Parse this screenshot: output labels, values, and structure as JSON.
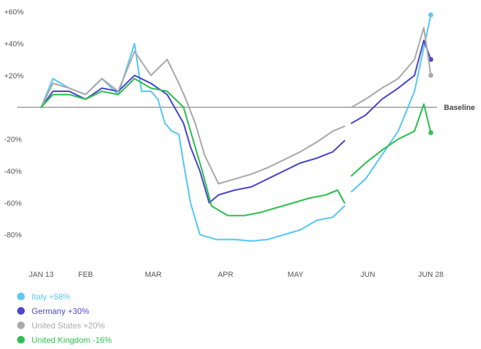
{
  "chart_data": {
    "type": "line",
    "title": "",
    "xlabel": "",
    "ylabel": "",
    "ylim": [
      -100,
      60
    ],
    "baseline_label": "Baseline",
    "y_ticks": [
      {
        "value": 60,
        "label": "+60%"
      },
      {
        "value": 40,
        "label": "+40%"
      },
      {
        "value": 20,
        "label": "+20%"
      },
      {
        "value": -20,
        "label": "-20%"
      },
      {
        "value": -40,
        "label": "-40%"
      },
      {
        "value": -60,
        "label": "-60%"
      },
      {
        "value": -80,
        "label": "-80%"
      }
    ],
    "x_ticks": [
      {
        "date": "2020-01-13",
        "label": "JAN 13"
      },
      {
        "date": "2020-02-01",
        "label": "FEB"
      },
      {
        "date": "2020-03-01",
        "label": "MAR"
      },
      {
        "date": "2020-04-01",
        "label": "APR"
      },
      {
        "date": "2020-05-01",
        "label": "MAY"
      },
      {
        "date": "2020-06-01",
        "label": "JUN"
      },
      {
        "date": "2020-06-28",
        "label": "JUN 28"
      }
    ],
    "x_range": [
      "2020-01-13",
      "2020-06-28"
    ],
    "grid": false,
    "legend_position": "bottom-left",
    "series": [
      {
        "name": "Italy +58%",
        "color": "#5ac8f5",
        "points": [
          [
            "2020-01-13",
            0
          ],
          [
            "2020-01-18",
            18
          ],
          [
            "2020-01-25",
            12
          ],
          [
            "2020-02-01",
            8
          ],
          [
            "2020-02-08",
            18
          ],
          [
            "2020-02-15",
            8
          ],
          [
            "2020-02-22",
            40
          ],
          [
            "2020-02-25",
            10
          ],
          [
            "2020-02-29",
            10
          ],
          [
            "2020-03-03",
            5
          ],
          [
            "2020-03-06",
            -10
          ],
          [
            "2020-03-09",
            -15
          ],
          [
            "2020-03-12",
            -17
          ],
          [
            "2020-03-14",
            -35
          ],
          [
            "2020-03-17",
            -60
          ],
          [
            "2020-03-21",
            -80
          ],
          [
            "2020-03-28",
            -83
          ],
          [
            "2020-04-05",
            -83
          ],
          [
            "2020-04-12",
            -84
          ],
          [
            "2020-04-19",
            -83
          ],
          [
            "2020-04-26",
            -80
          ],
          [
            "2020-05-03",
            -77
          ],
          [
            "2020-05-10",
            -71
          ],
          [
            "2020-05-17",
            -69
          ],
          [
            "2020-05-22",
            -62
          ],
          [
            "2020-05-23",
            null
          ],
          [
            "2020-05-25",
            -53
          ],
          [
            "2020-05-31",
            -45
          ],
          [
            "2020-06-07",
            -30
          ],
          [
            "2020-06-14",
            -15
          ],
          [
            "2020-06-21",
            10
          ],
          [
            "2020-06-28",
            58
          ]
        ],
        "end_value": 58
      },
      {
        "name": "Germany +30%",
        "color": "#4b48cc",
        "points": [
          [
            "2020-01-13",
            0
          ],
          [
            "2020-01-18",
            10
          ],
          [
            "2020-01-25",
            10
          ],
          [
            "2020-02-01",
            5
          ],
          [
            "2020-02-08",
            12
          ],
          [
            "2020-02-15",
            10
          ],
          [
            "2020-02-22",
            20
          ],
          [
            "2020-02-29",
            15
          ],
          [
            "2020-03-07",
            8
          ],
          [
            "2020-03-14",
            -10
          ],
          [
            "2020-03-17",
            -25
          ],
          [
            "2020-03-21",
            -40
          ],
          [
            "2020-03-25",
            -60
          ],
          [
            "2020-03-29",
            -55
          ],
          [
            "2020-04-05",
            -52
          ],
          [
            "2020-04-12",
            -50
          ],
          [
            "2020-04-19",
            -45
          ],
          [
            "2020-04-26",
            -40
          ],
          [
            "2020-05-03",
            -35
          ],
          [
            "2020-05-10",
            -32
          ],
          [
            "2020-05-17",
            -28
          ],
          [
            "2020-05-22",
            -21
          ],
          [
            "2020-05-23",
            null
          ],
          [
            "2020-05-25",
            -10
          ],
          [
            "2020-05-31",
            -5
          ],
          [
            "2020-06-07",
            5
          ],
          [
            "2020-06-14",
            12
          ],
          [
            "2020-06-21",
            20
          ],
          [
            "2020-06-25",
            42
          ],
          [
            "2020-06-28",
            30
          ]
        ],
        "end_value": 30
      },
      {
        "name": "United States +20%",
        "color": "#aaaaaa",
        "points": [
          [
            "2020-01-13",
            0
          ],
          [
            "2020-01-18",
            15
          ],
          [
            "2020-01-25",
            12
          ],
          [
            "2020-02-01",
            8
          ],
          [
            "2020-02-08",
            18
          ],
          [
            "2020-02-15",
            10
          ],
          [
            "2020-02-22",
            35
          ],
          [
            "2020-02-29",
            20
          ],
          [
            "2020-03-07",
            30
          ],
          [
            "2020-03-12",
            15
          ],
          [
            "2020-03-15",
            5
          ],
          [
            "2020-03-19",
            -10
          ],
          [
            "2020-03-23",
            -30
          ],
          [
            "2020-03-29",
            -48
          ],
          [
            "2020-04-05",
            -45
          ],
          [
            "2020-04-12",
            -42
          ],
          [
            "2020-04-19",
            -38
          ],
          [
            "2020-04-26",
            -33
          ],
          [
            "2020-05-03",
            -28
          ],
          [
            "2020-05-10",
            -22
          ],
          [
            "2020-05-17",
            -15
          ],
          [
            "2020-05-22",
            -12
          ],
          [
            "2020-05-23",
            null
          ],
          [
            "2020-05-25",
            0
          ],
          [
            "2020-05-31",
            5
          ],
          [
            "2020-06-07",
            12
          ],
          [
            "2020-06-14",
            18
          ],
          [
            "2020-06-21",
            30
          ],
          [
            "2020-06-25",
            50
          ],
          [
            "2020-06-28",
            20
          ]
        ],
        "end_value": 20
      },
      {
        "name": "United Kingdom -16%",
        "color": "#2ec04f",
        "points": [
          [
            "2020-01-13",
            0
          ],
          [
            "2020-01-18",
            8
          ],
          [
            "2020-01-25",
            8
          ],
          [
            "2020-02-01",
            5
          ],
          [
            "2020-02-08",
            10
          ],
          [
            "2020-02-15",
            8
          ],
          [
            "2020-02-22",
            18
          ],
          [
            "2020-02-29",
            12
          ],
          [
            "2020-03-07",
            10
          ],
          [
            "2020-03-14",
            0
          ],
          [
            "2020-03-18",
            -20
          ],
          [
            "2020-03-22",
            -40
          ],
          [
            "2020-03-26",
            -62
          ],
          [
            "2020-04-02",
            -68
          ],
          [
            "2020-04-09",
            -68
          ],
          [
            "2020-04-16",
            -66
          ],
          [
            "2020-04-23",
            -63
          ],
          [
            "2020-04-30",
            -60
          ],
          [
            "2020-05-07",
            -57
          ],
          [
            "2020-05-14",
            -55
          ],
          [
            "2020-05-19",
            -52
          ],
          [
            "2020-05-22",
            -60
          ],
          [
            "2020-05-23",
            null
          ],
          [
            "2020-05-25",
            -43
          ],
          [
            "2020-05-31",
            -35
          ],
          [
            "2020-06-07",
            -27
          ],
          [
            "2020-06-14",
            -20
          ],
          [
            "2020-06-21",
            -15
          ],
          [
            "2020-06-25",
            2
          ],
          [
            "2020-06-28",
            -16
          ]
        ],
        "end_value": -16
      }
    ]
  }
}
